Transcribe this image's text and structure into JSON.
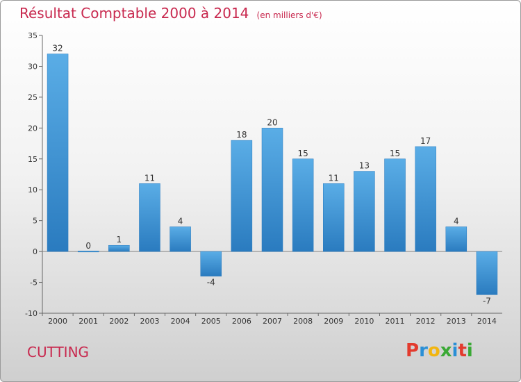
{
  "title": "Résultat Comptable 2000 à 2014",
  "unit": "(en milliers d'€)",
  "commune": "CUTTING",
  "logo": {
    "text": "Proxiti",
    "letters": [
      {
        "ch": "P",
        "color": "#e33b2e"
      },
      {
        "ch": "r",
        "color": "#2a8fd6"
      },
      {
        "ch": "o",
        "color": "#f2b50f"
      },
      {
        "ch": "x",
        "color": "#3aa935"
      },
      {
        "ch": "i",
        "color": "#2a8fd6"
      },
      {
        "ch": "t",
        "color": "#e33b2e"
      },
      {
        "ch": "i",
        "color": "#3aa935"
      }
    ]
  },
  "chart_data": {
    "type": "bar",
    "title": "Résultat Comptable 2000 à 2014",
    "ylabel": "",
    "xlabel": "",
    "categories": [
      "2000",
      "2001",
      "2002",
      "2003",
      "2004",
      "2005",
      "2006",
      "2007",
      "2008",
      "2009",
      "2010",
      "2011",
      "2012",
      "2013",
      "2014"
    ],
    "values": [
      32,
      0,
      1,
      11,
      4,
      -4,
      18,
      20,
      15,
      11,
      13,
      15,
      17,
      4,
      -7
    ],
    "ylim": [
      -10,
      35
    ],
    "yticks": [
      -10,
      -5,
      0,
      5,
      10,
      15,
      20,
      25,
      30,
      35
    ],
    "grid": false,
    "colors": {
      "bar_light": "#5aade6",
      "bar_dark": "#2a7bbf"
    }
  }
}
